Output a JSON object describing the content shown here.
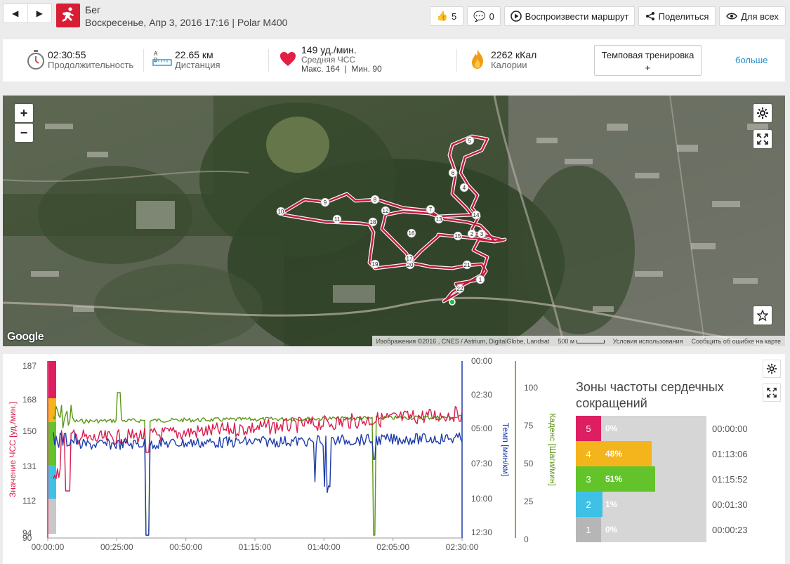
{
  "header": {
    "sport": "Бег",
    "subtitle": "Воскресенье, Апр 3, 2016 17:16 | Polar M400",
    "likes": "5",
    "comments": "0",
    "replay_label": "Воспроизвести маршрут",
    "share_label": "Поделиться",
    "visibility_label": "Для всех"
  },
  "stats": {
    "duration_value": "02:30:55",
    "duration_label": "Продолжительность",
    "distance_ab": "A B",
    "distance_value": "22.65 км",
    "distance_label": "Дистанция",
    "hr_value": "149 уд./мин.",
    "hr_label": "Средняя ЧСС",
    "hr_max": "Макс. 164",
    "hr_min": "Мин. 90",
    "cal_value": "2262 кКал",
    "cal_label": "Калории",
    "tempo_line1": "Темповая тренировка",
    "tempo_line2": "+",
    "more_label": "больше"
  },
  "map": {
    "zoom_in": "+",
    "zoom_out": "−",
    "attribution": "Изображения ©2016 , CNES / Astrium, DigitalGlobe, Landsat",
    "scale": "500 м",
    "terms": "Условия использования",
    "report": "Сообщить об ошибке на карте",
    "google": "Google",
    "km_markers": [
      "1",
      "2",
      "3",
      "4",
      "5",
      "6",
      "7",
      "8",
      "9",
      "10",
      "11",
      "12",
      "13",
      "14",
      "15",
      "16",
      "17",
      "18",
      "19",
      "20",
      "21",
      "22"
    ]
  },
  "chart_data": {
    "type": "line",
    "title": "",
    "x": [
      "00:00:00",
      "00:25:00",
      "00:50:00",
      "01:15:00",
      "01:40:00",
      "02:05:00",
      "02:30:00"
    ],
    "xlabel": "",
    "left_axis": {
      "label": "Значение ЧСС [уд./мин.]",
      "ticks": [
        "187",
        "168",
        "150",
        "131",
        "112",
        "94",
        "90"
      ],
      "range": [
        90,
        187
      ]
    },
    "pace_axis": {
      "label": "Темп [мин/км]",
      "ticks": [
        "00:00",
        "02:30",
        "05:00",
        "07:30",
        "10:00",
        "12:30"
      ]
    },
    "cadence_axis": {
      "label": "Каденс [Шаги/мин]",
      "ticks": [
        "100",
        "75",
        "50",
        "25",
        "0"
      ],
      "range": [
        0,
        110
      ]
    },
    "series": [
      {
        "name": "ЧСС",
        "color": "#d81e50"
      },
      {
        "name": "Темп",
        "color": "#1e3caa"
      },
      {
        "name": "Каденс",
        "color": "#5a9614"
      }
    ]
  },
  "zones": {
    "title_line1": "Зоны частоты сердечных",
    "title_line2": "сокращений",
    "items": [
      {
        "zone": "5",
        "pct": "0%",
        "time": "00:00:00",
        "fill": 0,
        "color": "#dd1f62"
      },
      {
        "zone": "4",
        "pct": "48%",
        "time": "01:13:06",
        "fill": 48,
        "color": "#f3b41c"
      },
      {
        "zone": "3",
        "pct": "51%",
        "time": "01:15:52",
        "fill": 51,
        "color": "#62c42a"
      },
      {
        "zone": "2",
        "pct": "1%",
        "time": "00:01:30",
        "fill": 1,
        "color": "#3fc1e6"
      },
      {
        "zone": "1",
        "pct": "0%",
        "time": "00:00:23",
        "fill": 0,
        "color": "#b6b6b6"
      }
    ]
  }
}
